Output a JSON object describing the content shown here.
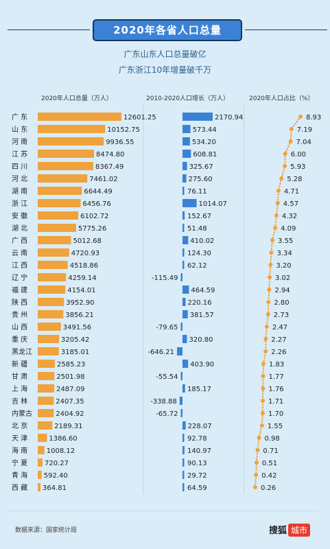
{
  "header": {
    "title": "2020年各省人口总量",
    "subtitle1": "广东山东人口总量破亿",
    "subtitle2": "广东浙江10年增量破千万"
  },
  "columns": {
    "population": "2020年人口总量（万人）",
    "growth": "2010-2020人口增长（万人）",
    "share": "2020年人口占比（%）"
  },
  "footer": {
    "source": "数据来源：国家统计局",
    "brand": "搜狐",
    "brand_badge": "城市"
  },
  "colors": {
    "orange": "#f0a23c",
    "blue": "#3b82d6",
    "bg": "#d9ecf7"
  },
  "chart_data": [
    {
      "type": "bar",
      "title": "2020年人口总量（万人）",
      "categories": [
        "广 东",
        "山 东",
        "河 南",
        "江 苏",
        "四 川",
        "河 北",
        "湖 南",
        "浙 江",
        "安 徽",
        "湖 北",
        "广 西",
        "云 南",
        "江 西",
        "辽 宁",
        "福 建",
        "陕 西",
        "贵 州",
        "山 西",
        "重 庆",
        "黑龙江",
        "新 疆",
        "甘 肃",
        "上 海",
        "吉 林",
        "内蒙古",
        "北 京",
        "天 津",
        "海 南",
        "宁 夏",
        "青 海",
        "西 藏"
      ],
      "values": [
        12601.25,
        10152.75,
        9936.55,
        8474.8,
        8367.49,
        7461.02,
        6644.49,
        6456.76,
        6102.72,
        5775.26,
        5012.68,
        4720.93,
        4518.86,
        4259.14,
        4154.01,
        3952.9,
        3856.21,
        3491.56,
        3205.42,
        3185.01,
        2585.23,
        2501.98,
        2487.09,
        2407.35,
        2404.92,
        2189.31,
        1386.6,
        1008.12,
        720.27,
        592.4,
        364.81
      ],
      "labels": [
        "12601.25",
        "10152.75",
        "9936.55",
        "8474.80",
        "8367.49",
        "7461.02",
        "6644.49",
        "6456.76",
        "6102.72",
        "5775.26",
        "5012.68",
        "4720.93",
        "4518.86",
        "4259.14",
        "4154.01",
        "3952.90",
        "3856.21",
        "3491.56",
        "3205.42",
        "3185.01",
        "2585.23",
        "2501.98",
        "2487.09",
        "2407.35",
        "2404.92",
        "2189.31",
        "1386.60",
        "1008.12",
        "720.27",
        "592.40",
        "364.81"
      ]
    },
    {
      "type": "bar",
      "title": "2010-2020人口增长（万人）",
      "values": [
        2170.94,
        573.44,
        534.2,
        608.81,
        325.67,
        275.6,
        76.11,
        1014.07,
        152.67,
        51.48,
        410.02,
        124.3,
        62.12,
        -115.49,
        464.59,
        220.16,
        381.57,
        -79.65,
        320.8,
        -646.21,
        403.9,
        -55.54,
        185.17,
        -338.88,
        -65.72,
        228.07,
        92.78,
        140.97,
        90.13,
        29.72,
        64.59
      ],
      "labels": [
        "2170.94",
        "573.44",
        "534.20",
        "608.81",
        "325.67",
        "275.60",
        "76.11",
        "1014.07",
        "152.67",
        "51.48",
        "410.02",
        "124.30",
        "62.12",
        "-115.49",
        "464.59",
        "220.16",
        "381.57",
        "-79.65",
        "320.80",
        "-646.21",
        "403.90",
        "-55.54",
        "185.17",
        "-338.88",
        "-65.72",
        "228.07",
        "92.78",
        "140.97",
        "90.13",
        "29.72",
        "64.59"
      ]
    },
    {
      "type": "line",
      "title": "2020年人口占比（%）",
      "values": [
        8.93,
        7.19,
        7.04,
        6.0,
        5.93,
        5.28,
        4.71,
        4.57,
        4.32,
        4.09,
        3.55,
        3.34,
        3.2,
        3.02,
        2.94,
        2.8,
        2.73,
        2.47,
        2.27,
        2.26,
        1.83,
        1.77,
        1.76,
        1.71,
        1.7,
        1.55,
        0.98,
        0.71,
        0.51,
        0.42,
        0.26
      ],
      "labels": [
        "8.93",
        "7.19",
        "7.04",
        "6.00",
        "5.93",
        "5.28",
        "4.71",
        "4.57",
        "4.32",
        "4.09",
        "3.55",
        "3.34",
        "3.20",
        "3.02",
        "2.94",
        "2.80",
        "2.73",
        "2.47",
        "2.27",
        "2.26",
        "1.83",
        "1.77",
        "1.76",
        "1.71",
        "1.70",
        "1.55",
        "0.98",
        "0.71",
        "0.51",
        "0.42",
        "0.26"
      ]
    }
  ]
}
